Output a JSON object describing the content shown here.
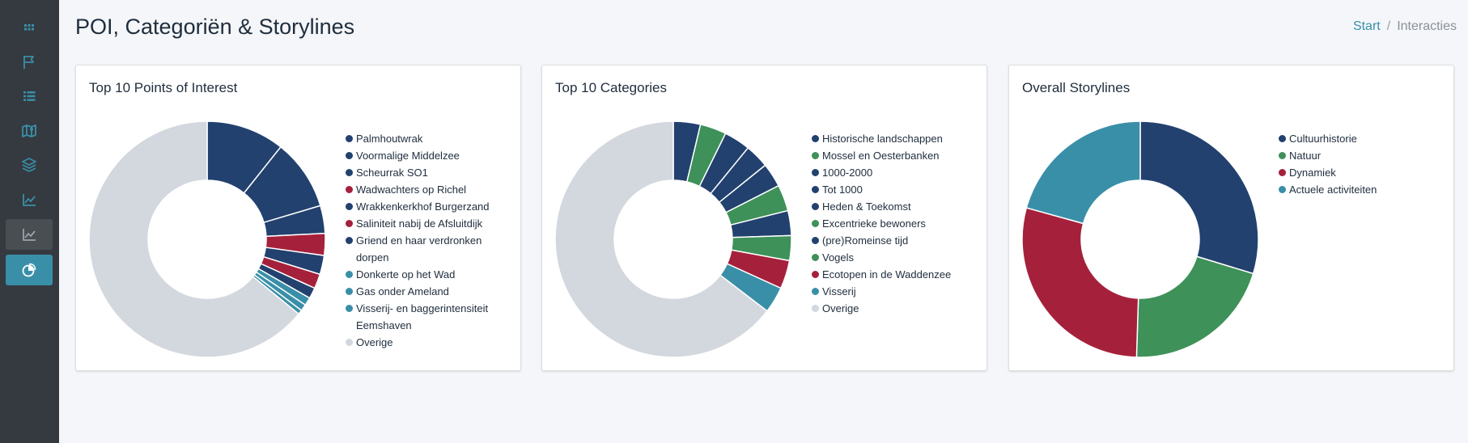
{
  "header": {
    "title": "POI, Categoriën & Storylines",
    "breadcrumb": {
      "home": "Start",
      "separator": "/",
      "current": "Interacties"
    }
  },
  "sidebar": {
    "icons": [
      "grid-icon",
      "flag-icon",
      "list-icon",
      "map-icon",
      "layers-icon",
      "line-chart-icon",
      "line-chart-icon",
      "pie-chart-icon"
    ],
    "active_index": 7
  },
  "colors": {
    "navy": "#22416f",
    "green": "#3e9159",
    "red": "#a5213b",
    "teal": "#3a8fa8",
    "gray": "#d3d7de"
  },
  "chart_data": [
    {
      "type": "pie",
      "title": "Top 10 Points of Interest",
      "labels": [
        "Palmhoutwrak",
        "Voormalige Middelzee",
        "Scheurrak SO1",
        "Wadwachters op Richel",
        "Wrakkenkerkhof Burgerzand",
        "Saliniteit nabij de Afsluitdijk",
        "Griend en haar verdronken dorpen",
        "Donkerte op het Wad",
        "Gas onder Ameland",
        "Visserij- en baggerintensiteit Eemshaven",
        "Overige"
      ],
      "values": [
        10.7,
        9.7,
        3.8,
        3.0,
        2.6,
        2.0,
        1.5,
        1.1,
        0.9,
        0.6,
        64.1
      ],
      "colors": [
        "#22416f",
        "#22416f",
        "#22416f",
        "#a5213b",
        "#22416f",
        "#a5213b",
        "#22416f",
        "#3a8fa8",
        "#3a8fa8",
        "#3a8fa8",
        "#d3d7de"
      ]
    },
    {
      "type": "pie",
      "title": "Top 10 Categories",
      "labels": [
        "Historische landschappen",
        "Mossel en Oesterbanken",
        "1000-2000",
        "Tot 1000",
        "Heden & Toekomst",
        "Excentrieke bewoners",
        "(pre)Romeinse tijd",
        "Vogels",
        "Ecotopen in de Waddenzee",
        "Visserij",
        "Overige"
      ],
      "values": [
        3.7,
        3.6,
        3.6,
        3.3,
        3.3,
        3.6,
        3.4,
        3.4,
        3.9,
        3.6,
        64.6
      ],
      "colors": [
        "#22416f",
        "#3e9159",
        "#22416f",
        "#22416f",
        "#22416f",
        "#3e9159",
        "#22416f",
        "#3e9159",
        "#a5213b",
        "#3a8fa8",
        "#d3d7de"
      ]
    },
    {
      "type": "pie",
      "title": "Overall Storylines",
      "labels": [
        "Cultuurhistorie",
        "Natuur",
        "Dynamiek",
        "Actuele activiteiten"
      ],
      "values": [
        29.7,
        20.8,
        28.8,
        20.7
      ],
      "colors": [
        "#22416f",
        "#3e9159",
        "#a5213b",
        "#3a8fa8"
      ]
    }
  ]
}
